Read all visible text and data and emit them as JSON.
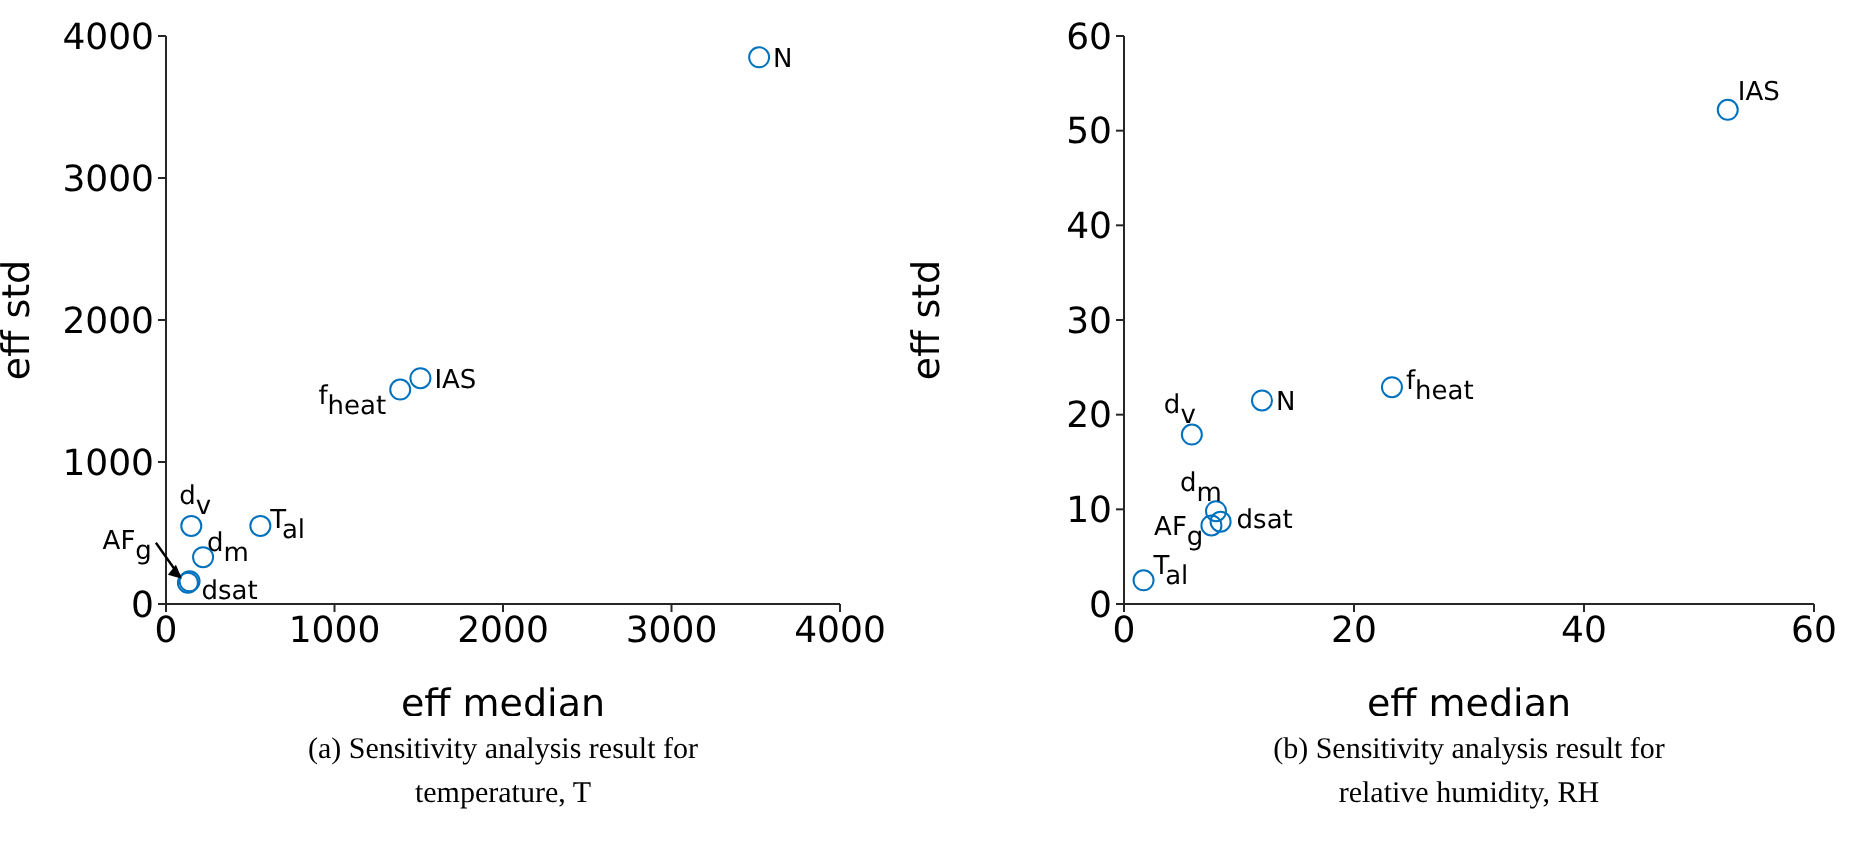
{
  "chart_data": [
    {
      "type": "scatter",
      "xlabel": "eff median",
      "ylabel": "eff std",
      "xlim": [
        0,
        4000
      ],
      "ylim": [
        0,
        4000
      ],
      "xticks": [
        0,
        1000,
        2000,
        3000,
        4000
      ],
      "yticks": [
        0,
        1000,
        2000,
        3000,
        4000
      ],
      "grid": false,
      "legend": false,
      "marker": "circle",
      "series": [
        {
          "color": "#0072bd",
          "x": [
            3520,
            1510,
            1390,
            560,
            150,
            220,
            140,
            130
          ],
          "values": [
            3850,
            1590,
            1510,
            550,
            550,
            330,
            160,
            150
          ]
        }
      ],
      "annotations": [
        {
          "text": "N",
          "x": 3520,
          "y": 3850
        },
        {
          "text": "IAS",
          "x": 1510,
          "y": 1590
        },
        {
          "text": "f$_{heat}$",
          "x": 1390,
          "y": 1510
        },
        {
          "text": "T$_{al}$",
          "x": 560,
          "y": 550
        },
        {
          "text": "d$_{v}$",
          "x": 150,
          "y": 550
        },
        {
          "text": "d$_{m}$",
          "x": 220,
          "y": 330
        },
        {
          "text": "dsat",
          "x": 140,
          "y": 160
        },
        {
          "text": "AF$_{g}$",
          "x": 130,
          "y": 150
        },
        "(a) Sensitivity analysis result for temperature, T"
      ]
    },
    {
      "type": "scatter",
      "xlabel": "eff median",
      "ylabel": "eff std",
      "xlim": [
        0,
        60
      ],
      "ylim": [
        0,
        60
      ],
      "xticks": [
        0,
        20,
        40,
        60
      ],
      "yticks": [
        0,
        10,
        20,
        30,
        40,
        50,
        60
      ],
      "grid": false,
      "legend": false,
      "marker": "circle",
      "series": [
        {
          "color": "#0072bd",
          "x": [
            12.0,
            52.5,
            23.3,
            1.7,
            5.9,
            8.0,
            8.4,
            7.6
          ],
          "values": [
            21.5,
            52.2,
            22.9,
            2.5,
            17.9,
            9.8,
            8.7,
            8.3
          ]
        }
      ],
      "annotations": [
        {
          "text": "N",
          "x": 12.0,
          "y": 21.5
        },
        {
          "text": "IAS",
          "x": 52.5,
          "y": 52.2
        },
        {
          "text": "f$_{heat}$",
          "x": 23.3,
          "y": 22.9
        },
        {
          "text": "T$_{al}$",
          "x": 1.7,
          "y": 2.5
        },
        {
          "text": "d$_{v}$",
          "x": 5.9,
          "y": 17.9
        },
        {
          "text": "d$_{m}$",
          "x": 8.0,
          "y": 9.8
        },
        {
          "text": "dsat",
          "x": 8.4,
          "y": 8.7
        },
        {
          "text": "AF$_{g}$",
          "x": 7.6,
          "y": 8.3
        },
        "(b) Sensitivity analysis result for relative humidity, RH"
      ]
    }
  ]
}
